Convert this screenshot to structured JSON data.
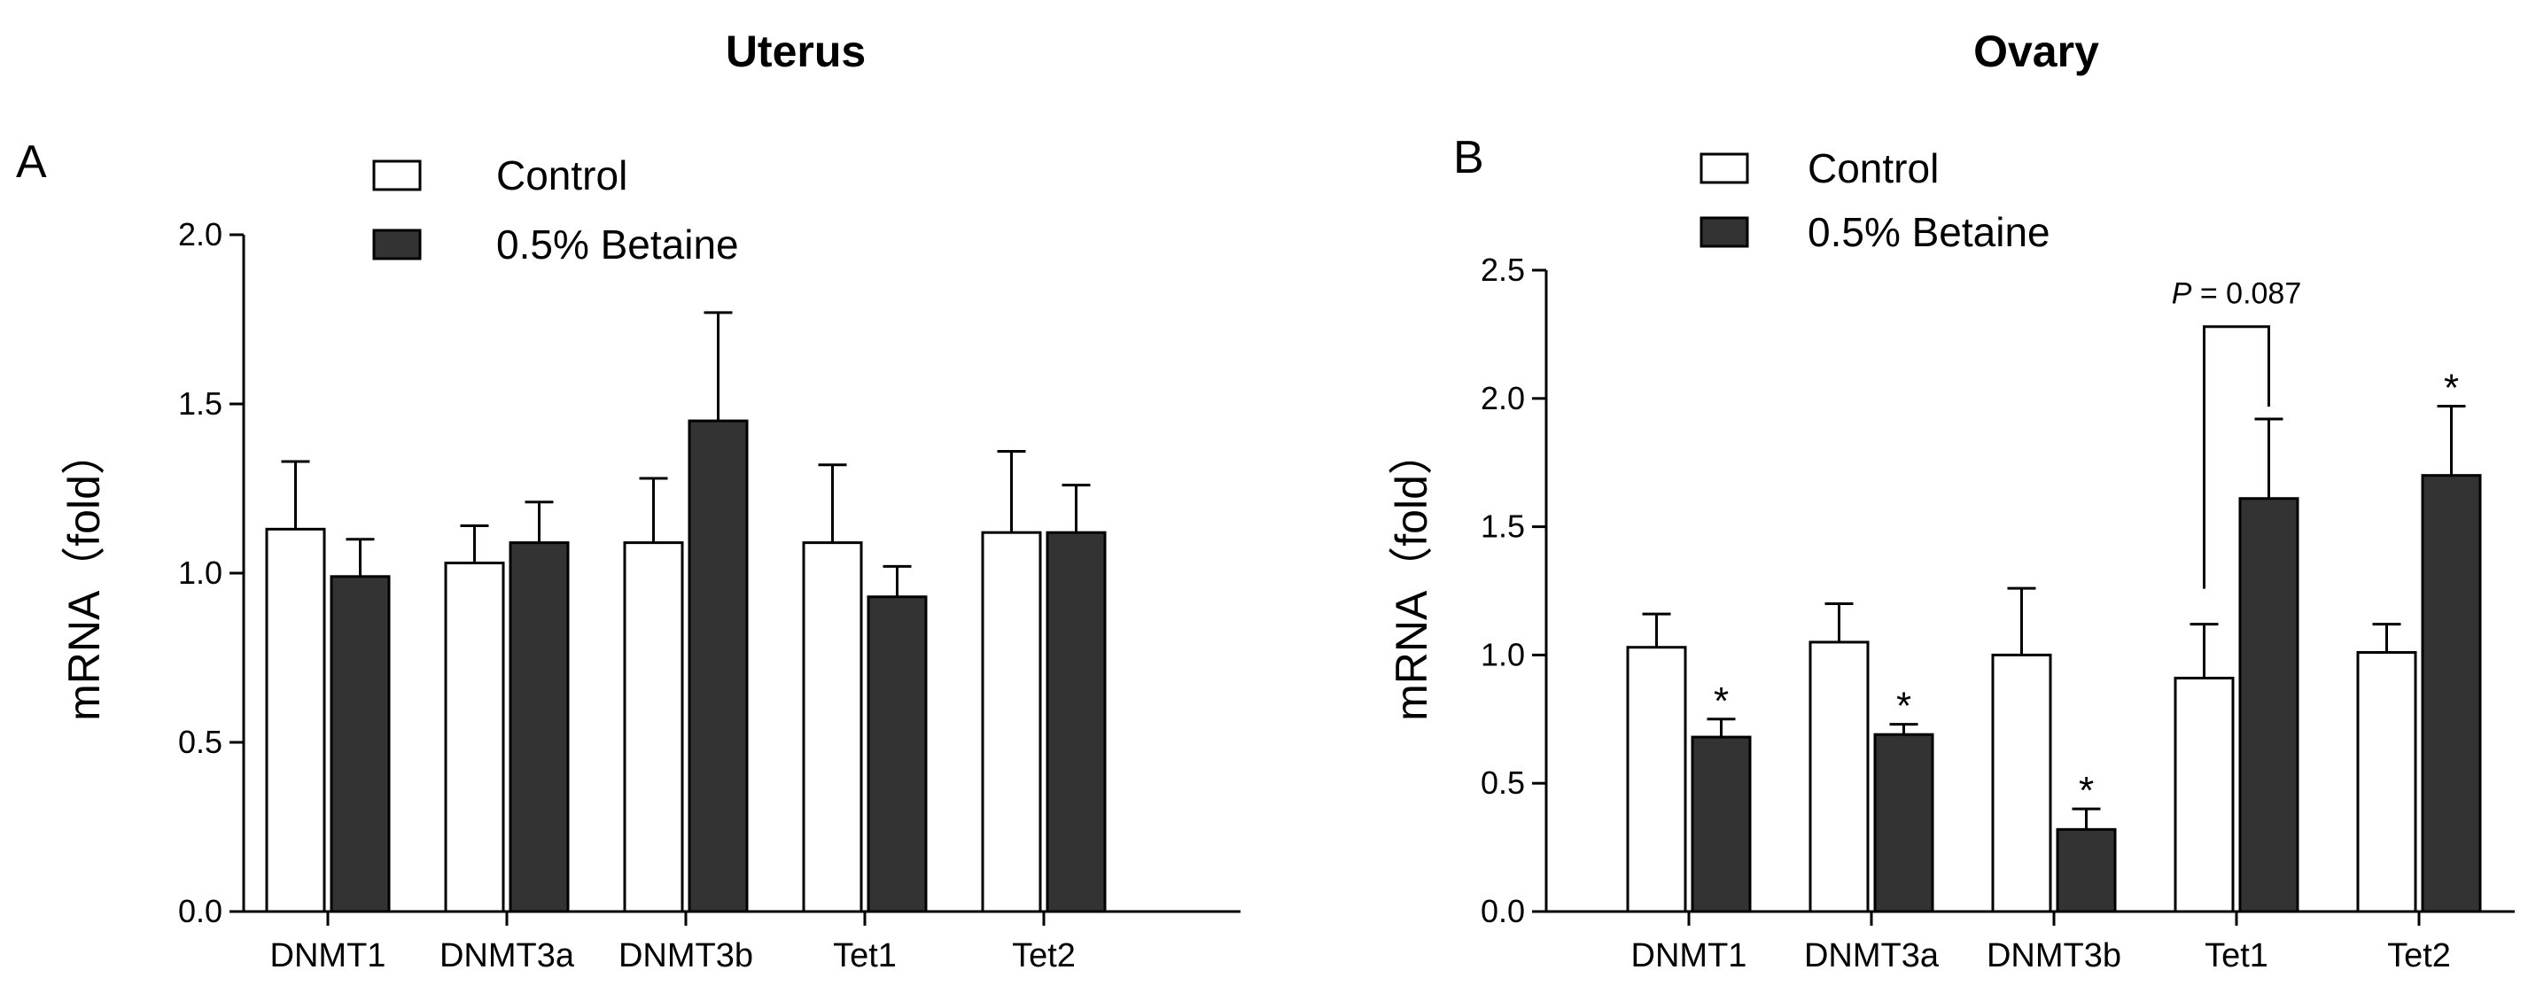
{
  "chart_data": [
    {
      "type": "bar",
      "panel_label": "A",
      "title": "Uterus",
      "xlabel": "",
      "ylabel": "mRNA（fold）",
      "ylim": [
        0,
        2.0
      ],
      "yticks": [
        0.0,
        0.5,
        1.0,
        1.5,
        2.0
      ],
      "ytick_labels": [
        "0.0",
        "0.5",
        "1.0",
        "1.5",
        "2.0"
      ],
      "categories": [
        "DNMT1",
        "DNMT3a",
        "DNMT3b",
        "Tet1",
        "Tet2"
      ],
      "series": [
        {
          "name": "Control",
          "color": "#ffffff",
          "values": [
            1.13,
            1.03,
            1.09,
            1.09,
            1.12
          ],
          "errors": [
            0.2,
            0.11,
            0.19,
            0.23,
            0.24
          ]
        },
        {
          "name": "0.5% Betaine",
          "color": "#333333",
          "values": [
            0.99,
            1.09,
            1.45,
            0.93,
            1.12
          ],
          "errors": [
            0.11,
            0.12,
            0.32,
            0.09,
            0.14
          ]
        }
      ],
      "annotations": [],
      "legend_position": "top-center",
      "grid": false
    },
    {
      "type": "bar",
      "panel_label": "B",
      "title": "Ovary",
      "xlabel": "",
      "ylabel": "mRNA（fold）",
      "ylim": [
        0,
        2.5
      ],
      "yticks": [
        0.0,
        0.5,
        1.0,
        1.5,
        2.0,
        2.5
      ],
      "ytick_labels": [
        "0.0",
        "0.5",
        "1.0",
        "1.5",
        "2.0",
        "2.5"
      ],
      "categories": [
        "DNMT1",
        "DNMT3a",
        "DNMT3b",
        "Tet1",
        "Tet2"
      ],
      "series": [
        {
          "name": "Control",
          "color": "#ffffff",
          "values": [
            1.03,
            1.05,
            1.0,
            0.91,
            1.01
          ],
          "errors": [
            0.13,
            0.15,
            0.26,
            0.21,
            0.11
          ]
        },
        {
          "name": "0.5% Betaine",
          "color": "#333333",
          "values": [
            0.68,
            0.69,
            0.32,
            1.61,
            1.7
          ],
          "errors": [
            0.07,
            0.04,
            0.08,
            0.31,
            0.27
          ]
        }
      ],
      "annotations": [
        {
          "type": "star",
          "text": "*",
          "category_index": 0,
          "series_index": 1
        },
        {
          "type": "star",
          "text": "*",
          "category_index": 1,
          "series_index": 1
        },
        {
          "type": "star",
          "text": "*",
          "category_index": 2,
          "series_index": 1
        },
        {
          "type": "star",
          "text": "*",
          "category_index": 4,
          "series_index": 1
        },
        {
          "type": "bracket",
          "category_index": 3,
          "p_label": "P",
          "p_value_text": " = 0.087",
          "bracket_level": 2.28
        }
      ],
      "legend_position": "top-center",
      "grid": false
    }
  ]
}
